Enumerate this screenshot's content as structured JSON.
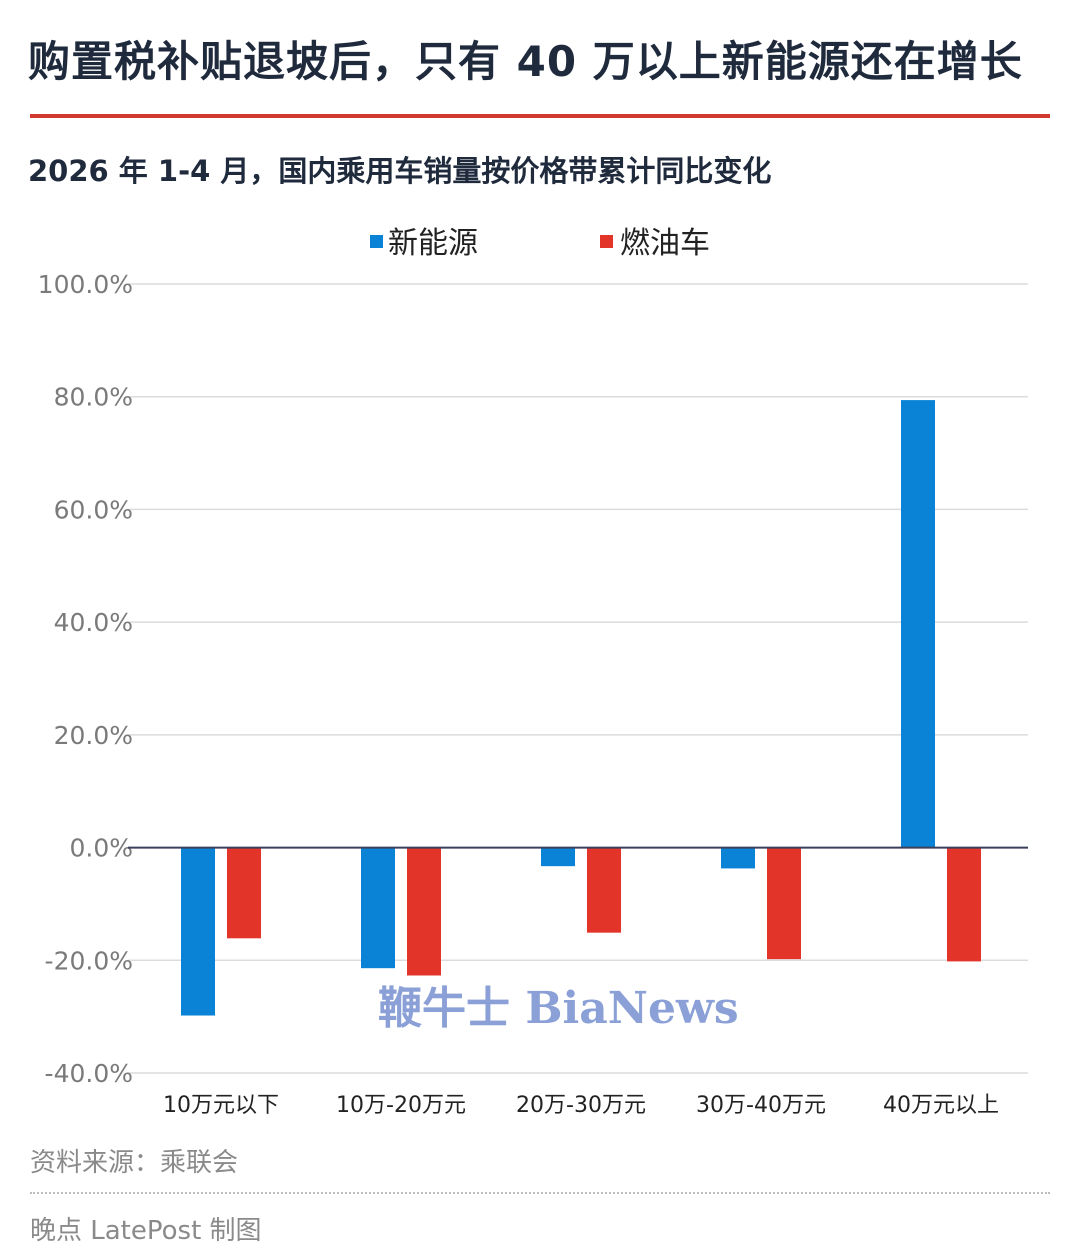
{
  "header": {
    "title": "购置税补贴退坡后，只有 40 万以上新能源还在增长",
    "subtitle": "2026 年 1-4 月，国内乘用车销量按价格带累计同比变化"
  },
  "footer": {
    "source": "资料来源：乘联会",
    "credit": "晚点 LatePost 制图"
  },
  "watermark": {
    "text": "鞭牛士 BiaNews"
  },
  "colors": {
    "nev": "#0a82d6",
    "ice": "#e3342a",
    "rule": "#d23a2f"
  },
  "chart_data": {
    "type": "bar",
    "categories": [
      "10万元以下",
      "10万-20万元",
      "20万-30万元",
      "30万-40万元",
      "40万元以上"
    ],
    "series": [
      {
        "name": "新能源",
        "values": [
          -29.8,
          -21.4,
          -3.3,
          -3.7,
          79.4
        ]
      },
      {
        "name": "燃油车",
        "values": [
          -16.1,
          -22.7,
          -15.1,
          -19.8,
          -20.2
        ]
      }
    ],
    "ylim": [
      -40,
      100
    ],
    "yticks": [
      "100.0%",
      "80.0%",
      "60.0%",
      "40.0%",
      "20.0%",
      "0.0%",
      "-20.0%",
      "-40.0%"
    ],
    "ytick_values": [
      100,
      80,
      60,
      40,
      20,
      0,
      -20,
      -40
    ],
    "legend_position": "top-center",
    "grid": true
  }
}
